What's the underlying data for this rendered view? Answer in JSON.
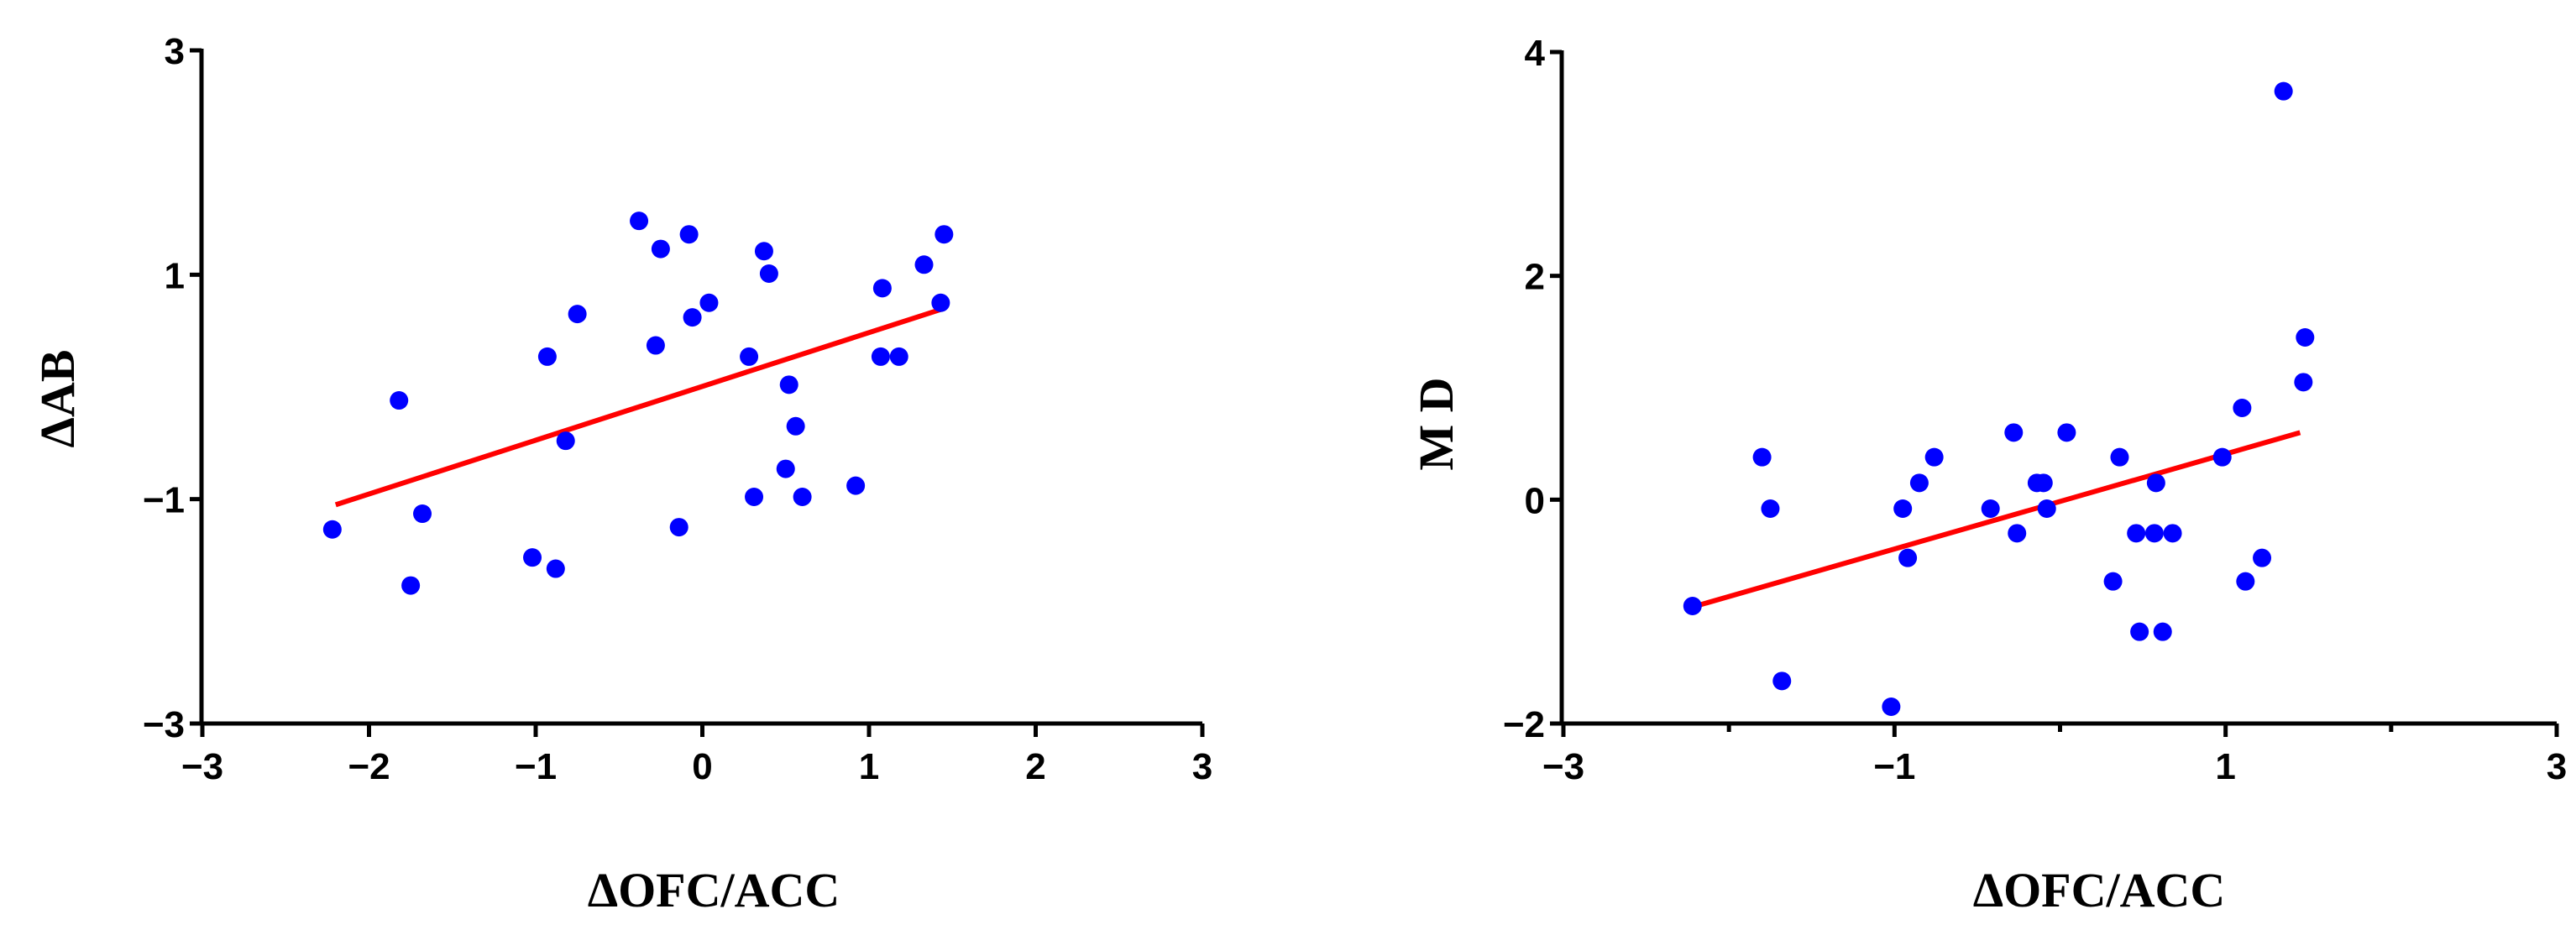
{
  "chart_data": [
    {
      "type": "scatter",
      "xlabel": "ΔOFC/ACC",
      "ylabel": "ΔAB",
      "xlim": [
        -3,
        3
      ],
      "ylim": [
        -3,
        3
      ],
      "xticks": [
        "−3",
        "−2",
        "−1",
        "0",
        "1",
        "2",
        "3"
      ],
      "xtick_values": [
        -3,
        -2,
        -1,
        0,
        1,
        2,
        3
      ],
      "yticks": [
        "3",
        "1",
        "−1",
        "−3"
      ],
      "ytick_values": [
        3,
        1,
        -1,
        -3
      ],
      "grid": false,
      "colors": {
        "points": "#0000ff",
        "fit_line": "#ff0000"
      },
      "fit_line": {
        "x": [
          -2.2,
          1.45
        ],
        "y": [
          -1.05,
          0.7
        ]
      },
      "points": [
        {
          "x": -2.22,
          "y": -1.27
        },
        {
          "x": -1.82,
          "y": -0.12
        },
        {
          "x": -1.75,
          "y": -1.77
        },
        {
          "x": -1.68,
          "y": -1.13
        },
        {
          "x": -1.02,
          "y": -1.52
        },
        {
          "x": -0.93,
          "y": 0.27
        },
        {
          "x": -0.88,
          "y": -1.62
        },
        {
          "x": -0.82,
          "y": -0.48
        },
        {
          "x": -0.75,
          "y": 0.65
        },
        {
          "x": -0.38,
          "y": 1.48
        },
        {
          "x": -0.28,
          "y": 0.37
        },
        {
          "x": -0.25,
          "y": 1.23
        },
        {
          "x": -0.14,
          "y": -1.25
        },
        {
          "x": -0.08,
          "y": 1.36
        },
        {
          "x": -0.06,
          "y": 0.62
        },
        {
          "x": 0.04,
          "y": 0.75
        },
        {
          "x": 0.28,
          "y": 0.27
        },
        {
          "x": 0.31,
          "y": -0.98
        },
        {
          "x": 0.37,
          "y": 1.21
        },
        {
          "x": 0.4,
          "y": 1.01
        },
        {
          "x": 0.5,
          "y": -0.73
        },
        {
          "x": 0.52,
          "y": 0.02
        },
        {
          "x": 0.56,
          "y": -0.35
        },
        {
          "x": 0.6,
          "y": -0.98
        },
        {
          "x": 0.92,
          "y": -0.88
        },
        {
          "x": 1.07,
          "y": 0.27
        },
        {
          "x": 1.08,
          "y": 0.88
        },
        {
          "x": 1.18,
          "y": 0.27
        },
        {
          "x": 1.33,
          "y": 1.09
        },
        {
          "x": 1.43,
          "y": 0.75
        },
        {
          "x": 1.45,
          "y": 1.36
        }
      ]
    },
    {
      "type": "scatter",
      "xlabel": "ΔOFC/ACC",
      "ylabel": "M D",
      "xlim": [
        -3,
        3
      ],
      "ylim": [
        -2,
        4
      ],
      "xticks": [
        "−3",
        "−1",
        "1",
        "3"
      ],
      "xtick_values": [
        -3,
        -1,
        1,
        3
      ],
      "minor_xtick_values": [
        -2,
        0,
        2
      ],
      "yticks": [
        "4",
        "2",
        "0",
        "−2"
      ],
      "ytick_values": [
        4,
        2,
        0,
        -2
      ],
      "grid": false,
      "colors": {
        "points": "#0000ff",
        "fit_line": "#ff0000"
      },
      "fit_line": {
        "x": [
          -2.2,
          1.45
        ],
        "y": [
          -0.95,
          0.6
        ]
      },
      "points": [
        {
          "x": -2.22,
          "y": -0.95
        },
        {
          "x": -1.8,
          "y": 0.38
        },
        {
          "x": -1.75,
          "y": -0.08
        },
        {
          "x": -1.68,
          "y": -1.62
        },
        {
          "x": -1.02,
          "y": -1.85
        },
        {
          "x": -0.95,
          "y": -0.08
        },
        {
          "x": -0.92,
          "y": -0.52
        },
        {
          "x": -0.85,
          "y": 0.15
        },
        {
          "x": -0.76,
          "y": 0.38
        },
        {
          "x": -0.42,
          "y": -0.08
        },
        {
          "x": -0.28,
          "y": 0.6
        },
        {
          "x": -0.26,
          "y": -0.3
        },
        {
          "x": -0.14,
          "y": 0.15
        },
        {
          "x": -0.1,
          "y": 0.15
        },
        {
          "x": -0.08,
          "y": -0.08
        },
        {
          "x": 0.04,
          "y": 0.6
        },
        {
          "x": 0.32,
          "y": -0.73
        },
        {
          "x": 0.36,
          "y": 0.38
        },
        {
          "x": 0.46,
          "y": -0.3
        },
        {
          "x": 0.48,
          "y": -1.18
        },
        {
          "x": 0.57,
          "y": -0.3
        },
        {
          "x": 0.58,
          "y": 0.15
        },
        {
          "x": 0.62,
          "y": -1.18
        },
        {
          "x": 0.68,
          "y": -0.3
        },
        {
          "x": 0.98,
          "y": 0.38
        },
        {
          "x": 1.1,
          "y": 0.82
        },
        {
          "x": 1.12,
          "y": -0.73
        },
        {
          "x": 1.22,
          "y": -0.52
        },
        {
          "x": 1.35,
          "y": 3.65
        },
        {
          "x": 1.47,
          "y": 1.05
        },
        {
          "x": 1.48,
          "y": 1.45
        }
      ]
    }
  ]
}
